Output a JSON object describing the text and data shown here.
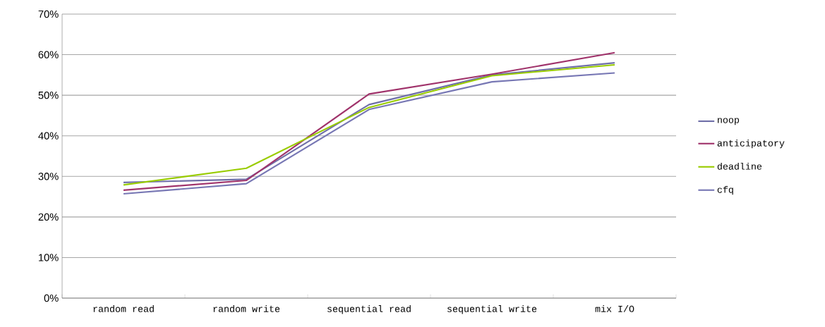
{
  "chart_data": {
    "type": "line",
    "categories": [
      "random read",
      "random write",
      "sequential read",
      "sequential write",
      "mix I/O"
    ],
    "series": [
      {
        "name": "noop",
        "color": "#6f6fa8",
        "values": [
          28.5,
          29.3,
          47.7,
          55.0,
          58.0
        ]
      },
      {
        "name": "anticipatory",
        "color": "#a0336b",
        "values": [
          26.6,
          29.0,
          50.3,
          55.2,
          60.5
        ]
      },
      {
        "name": "deadline",
        "color": "#99cc00",
        "values": [
          27.9,
          32.0,
          47.0,
          54.8,
          57.5
        ]
      },
      {
        "name": "cfq",
        "color": "#7777b4",
        "values": [
          25.7,
          28.2,
          46.5,
          53.3,
          55.5
        ]
      }
    ],
    "ylim": [
      0,
      70
    ],
    "yticks": [
      {
        "value": 0,
        "label": "0%"
      },
      {
        "value": 10,
        "label": "10%"
      },
      {
        "value": 20,
        "label": "20%"
      },
      {
        "value": 30,
        "label": "30%"
      },
      {
        "value": 40,
        "label": "40%"
      },
      {
        "value": 50,
        "label": "50%"
      },
      {
        "value": 60,
        "label": "60%"
      },
      {
        "value": 70,
        "label": "70%"
      }
    ],
    "grid": "y",
    "legend": "right",
    "marker": "none",
    "line_style": "solid"
  }
}
